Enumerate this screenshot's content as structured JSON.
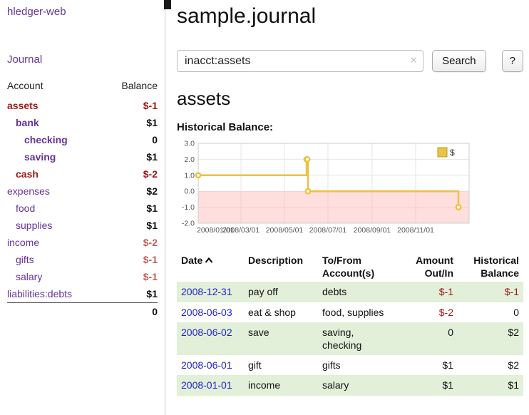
{
  "colors": {
    "link_purple": "#663399",
    "negative_strong": "#9e1616",
    "negative_soft": "#c06060",
    "date_link_blue": "#2222cc",
    "row_green": "#e2efd9",
    "chart_line": "#edc240",
    "chart_negative_region": "#ffb6b6"
  },
  "app": {
    "title": "hledger-web"
  },
  "sidebar": {
    "journal_link": "Journal",
    "accounts": {
      "headers": {
        "account": "Account",
        "balance": "Balance"
      },
      "rows": [
        {
          "name": "assets",
          "balance": "$-1",
          "indent": 0,
          "bold": true,
          "name_tone": "negative",
          "balance_tone": "negative"
        },
        {
          "name": "bank",
          "balance": "$1",
          "indent": 1,
          "bold": true,
          "name_tone": "link",
          "balance_tone": "normal"
        },
        {
          "name": "checking",
          "balance": "0",
          "indent": 2,
          "bold": true,
          "name_tone": "link",
          "balance_tone": "normal"
        },
        {
          "name": "saving",
          "balance": "$1",
          "indent": 2,
          "bold": true,
          "name_tone": "link",
          "balance_tone": "normal"
        },
        {
          "name": "cash",
          "balance": "$-2",
          "indent": 1,
          "bold": true,
          "name_tone": "negative",
          "balance_tone": "negative"
        },
        {
          "name": "expenses",
          "balance": "$2",
          "indent": 0,
          "bold": false,
          "name_tone": "link",
          "balance_tone": "normal"
        },
        {
          "name": "food",
          "balance": "$1",
          "indent": 1,
          "bold": false,
          "name_tone": "link",
          "balance_tone": "normal"
        },
        {
          "name": "supplies",
          "balance": "$1",
          "indent": 1,
          "bold": false,
          "name_tone": "link",
          "balance_tone": "normal"
        },
        {
          "name": "income",
          "balance": "$-2",
          "indent": 0,
          "bold": false,
          "name_tone": "link",
          "balance_tone": "soft-negative"
        },
        {
          "name": "gifts",
          "balance": "$-1",
          "indent": 1,
          "bold": false,
          "name_tone": "link",
          "balance_tone": "soft-negative"
        },
        {
          "name": "salary",
          "balance": "$-1",
          "indent": 1,
          "bold": false,
          "name_tone": "link",
          "balance_tone": "soft-negative"
        },
        {
          "name": "liabilities:debts",
          "balance": "$1",
          "indent": 0,
          "bold": false,
          "name_tone": "link",
          "balance_tone": "normal"
        }
      ],
      "total": "0"
    }
  },
  "main": {
    "title": "sample.journal",
    "search": {
      "value": "inacct:assets",
      "clear_icon": "×",
      "search_button": "Search",
      "help_button": "?"
    },
    "account_heading": "assets",
    "chart_title": "Historical Balance:"
  },
  "chart_data": {
    "type": "line",
    "style": "step",
    "title": "Historical Balance",
    "series": [
      {
        "name": "$",
        "points": [
          {
            "date": "2008/01/01",
            "value": 1.0
          },
          {
            "date": "2008/06/01",
            "value": 2.0
          },
          {
            "date": "2008/06/02",
            "value": 2.0
          },
          {
            "date": "2008/06/03",
            "value": 0.0
          },
          {
            "date": "2008/12/31",
            "value": -1.0
          }
        ]
      }
    ],
    "ylim": [
      -2.0,
      3.0
    ],
    "y_ticks": [
      3.0,
      2.0,
      1.0,
      0.0,
      -1.0,
      -2.0
    ],
    "x_ticks": [
      "2008/01/01",
      "2008/03/01",
      "2008/05/01",
      "2008/07/01",
      "2008/09/01",
      "2008/11/01"
    ],
    "xlim": [
      "2008/01/01",
      "2009/01/15"
    ],
    "grid": true,
    "negative_region_shaded": true,
    "legend": {
      "label": "$",
      "position": "top-right"
    }
  },
  "register": {
    "headers": {
      "date": "Date",
      "description": "Description",
      "tofrom": "To/From\nAccount(s)",
      "amount": "Amount\nOut/In",
      "balance": "Historical\nBalance"
    },
    "rows": [
      {
        "date": "2008-12-31",
        "description": "pay off",
        "tofrom": "debts",
        "amount": "$-1",
        "balance": "$-1",
        "amount_negative": true,
        "balance_negative": true,
        "shaded": true
      },
      {
        "date": "2008-06-03",
        "description": "eat & shop",
        "tofrom": "food, supplies",
        "amount": "$-2",
        "balance": "0",
        "amount_negative": true,
        "balance_negative": false,
        "shaded": false
      },
      {
        "date": "2008-06-02",
        "description": "save",
        "tofrom": "saving, checking",
        "amount": "0",
        "balance": "$2",
        "amount_negative": false,
        "balance_negative": false,
        "shaded": true
      },
      {
        "date": "2008-06-01",
        "description": "gift",
        "tofrom": "gifts",
        "amount": "$1",
        "balance": "$2",
        "amount_negative": false,
        "balance_negative": false,
        "shaded": false
      },
      {
        "date": "2008-01-01",
        "description": "income",
        "tofrom": "salary",
        "amount": "$1",
        "balance": "$1",
        "amount_negative": false,
        "balance_negative": false,
        "shaded": true
      }
    ]
  }
}
